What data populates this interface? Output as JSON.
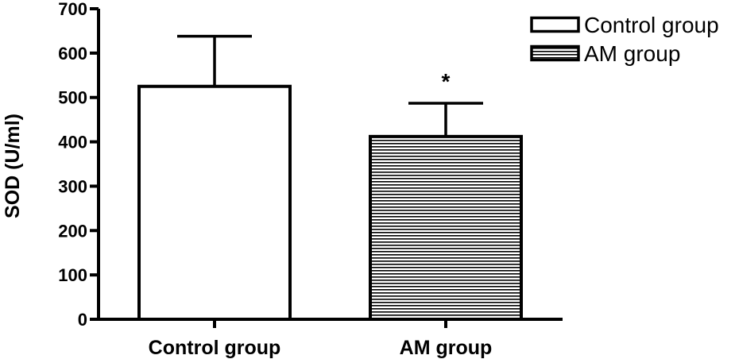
{
  "chart_data": {
    "type": "bar",
    "categories": [
      "Control group",
      "AM group"
    ],
    "series": [
      {
        "name": "SOD",
        "values": [
          525,
          412
        ],
        "errors": [
          113,
          75
        ],
        "fills": [
          "open",
          "horizontal-hatch"
        ]
      }
    ],
    "xlabel": "",
    "ylabel": "SOD (U/ml)",
    "ylim": [
      0,
      700
    ],
    "yticks": [
      0,
      100,
      200,
      300,
      400,
      500,
      600,
      700
    ],
    "legend": {
      "position": "top-right",
      "entries": [
        "Control group",
        "AM group"
      ]
    },
    "annotations": [
      {
        "category": "AM group",
        "text": "*"
      }
    ],
    "grid": false
  }
}
